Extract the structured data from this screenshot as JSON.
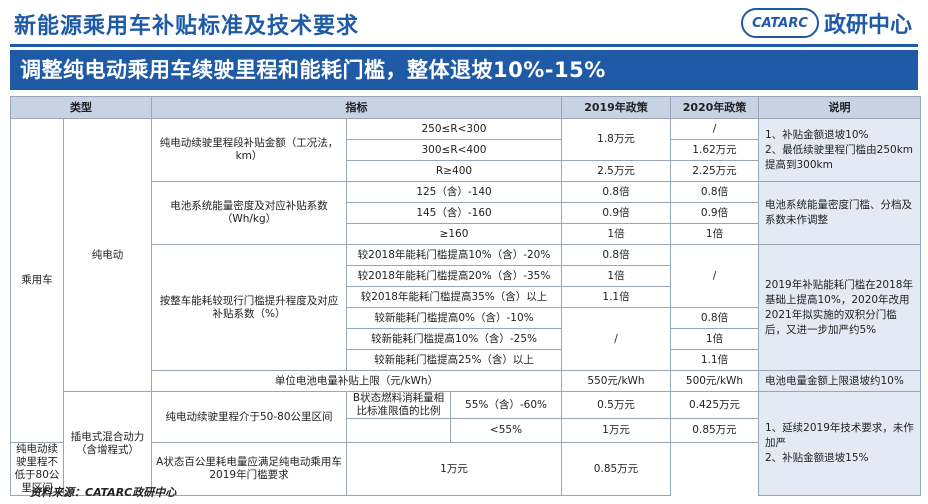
{
  "header": {
    "title": "新能源乘用车补贴标准及技术要求",
    "logo_mark": "CATARC",
    "logo_text": "政研中心"
  },
  "banner": "调整纯电动乘用车续驶里程和能耗门槛，整体退坡10%-15%",
  "table": {
    "headers": [
      "类型",
      "指标",
      "2019年政策",
      "2020年政策",
      "说明"
    ],
    "category": "乘用车",
    "bev_label": "纯电动",
    "phev_label": "插电式混合动力（含增程式）",
    "range_label": "纯电动续驶里程段补贴金额（工况法，km）",
    "range_rows": [
      {
        "cond": "250≤R<300",
        "p2020": "/"
      },
      {
        "cond": "300≤R<400",
        "p2020": "1.62万元"
      },
      {
        "cond": "R≥400",
        "p2019": "2.5万元",
        "p2020": "2.25万元"
      }
    ],
    "range_p2019_merged": "1.8万元",
    "range_note": "1、补贴金额退坡10%\n2、最低续驶里程门槛由250km提高到300km",
    "density_label": "电池系统能量密度及对应补贴系数（Wh/kg）",
    "density_rows": [
      {
        "cond": "125（含）-140",
        "p2019": "0.8倍",
        "p2020": "0.8倍"
      },
      {
        "cond": "145（含）-160",
        "p2019": "0.9倍",
        "p2020": "0.9倍"
      },
      {
        "cond": "≥160",
        "p2019": "1倍",
        "p2020": "1倍"
      }
    ],
    "density_note": "电池系统能量密度门槛、分档及系数未作调整",
    "energy_label": "按整车能耗较现行门槛提升程度及对应补贴系数（%）",
    "energy_rows_2019": [
      {
        "cond": "较2018年能耗门槛提高10%（含）-20%",
        "p2019": "0.8倍"
      },
      {
        "cond": "较2018年能耗门槛提高20%（含）-35%",
        "p2019": "1倍"
      },
      {
        "cond": "较2018年能耗门槛提高35%（含）以上",
        "p2019": "1.1倍"
      }
    ],
    "energy_p2020_merged": "/",
    "energy_rows_2020": [
      {
        "cond": "较新能耗门槛提高0%（含）-10%",
        "p2020": "0.8倍"
      },
      {
        "cond": "较新能耗门槛提高10%（含）-25%",
        "p2020": "1倍"
      },
      {
        "cond": "较新能耗门槛提高25%（含）以上",
        "p2020": "1.1倍"
      }
    ],
    "energy_p2019_merged": "/",
    "energy_note": "2019年补贴能耗门槛在2018年基础上提高10%，2020年改用2021年拟实施的双积分门槛后，又进一步加严约5%",
    "unit_row": {
      "label": "单位电池电量补贴上限（元/kWh）",
      "p2019": "550元/kWh",
      "p2020": "500元/kWh",
      "note": "电池电量金额上限退坡约10%"
    },
    "phev_rows": {
      "range_a": "纯电动续驶里程介于50-80公里区间",
      "b_state": "B状态燃料消耗量相比标准限值的比例",
      "b1_cond": "55%（含）-60%",
      "b1_p2019": "0.5万元",
      "b1_p2020": "0.425万元",
      "b2_cond": "<55%",
      "b2_p2019": "1万元",
      "b2_p2020": "0.85万元",
      "range_b": "纯电动续驶里程不低于80公里区间",
      "a_state": "A状态百公里耗电量应满足纯电动乘用车2019年门槛要求",
      "c_p2019": "1万元",
      "c_p2020": "0.85万元"
    },
    "phev_note": "1、延续2019年技术要求，未作加严\n2、补贴金额退坡15%"
  },
  "footer": "资料来源：CATARC政研中心"
}
